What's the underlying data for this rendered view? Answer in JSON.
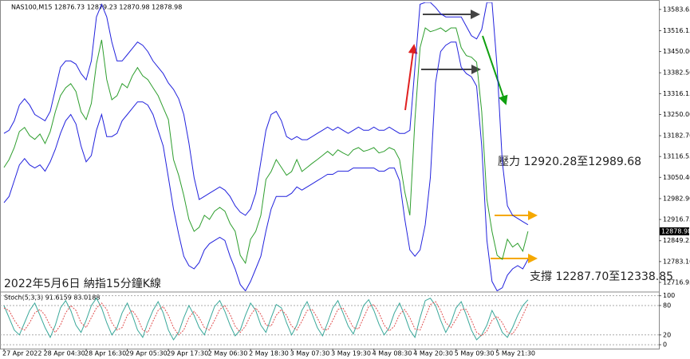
{
  "chart_data": [
    {
      "type": "line",
      "title": "NAS100,M15 12876.73 12879.23 12870.98 12878.98",
      "annotations": [
        "壓力 12920.28至12989.68",
        "支撐 12287.70至12338.85",
        "2022年5月6日 納指15分鐘K線"
      ],
      "categories": [
        "27 Apr 2022",
        null,
        null,
        null,
        null,
        null,
        null,
        null,
        "28 Apr 04:30",
        null,
        null,
        null,
        null,
        null,
        null,
        null,
        "28 Apr 16:30",
        null,
        null,
        null,
        null,
        null,
        null,
        null,
        "29 Apr 05:30",
        null,
        null,
        null,
        null,
        null,
        null,
        null,
        "29 Apr 17:30",
        null,
        null,
        null,
        null,
        null,
        null,
        null,
        "2 May 06:30",
        null,
        null,
        null,
        null,
        null,
        null,
        null,
        "2 May 18:30",
        null,
        null,
        null,
        null,
        null,
        null,
        null,
        "3 May 07:30",
        null,
        null,
        null,
        null,
        null,
        null,
        null,
        "3 May 19:30",
        null,
        null,
        null,
        null,
        null,
        null,
        null,
        "4 May 08:30",
        null,
        null,
        null,
        null,
        null,
        null,
        null,
        "4 May 20:30",
        null,
        null,
        null,
        null,
        null,
        null,
        null,
        "5 May 09:30",
        null,
        null,
        null,
        null,
        null,
        null,
        null,
        "5 May 21:30",
        null,
        null,
        null,
        null,
        null,
        null
      ],
      "series": [
        {
          "color": "#2e9e2e",
          "values": [
            13082,
            13107,
            13145,
            13196,
            13209,
            13183,
            13171,
            13188,
            13158,
            13196,
            13259,
            13310,
            13335,
            13348,
            13323,
            13259,
            13234,
            13285,
            13411,
            13487,
            13361,
            13297,
            13310,
            13348,
            13335,
            13373,
            13399,
            13373,
            13361,
            13335,
            13310,
            13272,
            13234,
            13107,
            13057,
            12993,
            12917,
            12879,
            12892,
            12930,
            12917,
            12943,
            12955,
            12943,
            12904,
            12879,
            12803,
            12778,
            12854,
            12879,
            12930,
            13044,
            13069,
            13107,
            13082,
            13057,
            13069,
            13107,
            13069,
            13082,
            13095,
            13107,
            13120,
            13133,
            13120,
            13138,
            13128,
            13120,
            13138,
            13145,
            13133,
            13138,
            13145,
            13128,
            13133,
            13145,
            13138,
            13107,
            13006,
            12930,
            13234,
            13462,
            13525,
            13513,
            13518,
            13525,
            13513,
            13525,
            13525,
            13462,
            13437,
            13432,
            13416,
            13259,
            12980,
            12879,
            12803,
            12790,
            12854,
            12829,
            12841,
            12816,
            12878.98
          ]
        },
        {
          "color": "#2222dd",
          "values": [
            13190,
            13200,
            13230,
            13280,
            13300,
            13280,
            13250,
            13240,
            13230,
            13260,
            13330,
            13400,
            13420,
            13420,
            13410,
            13380,
            13360,
            13420,
            13560,
            13600,
            13560,
            13480,
            13420,
            13420,
            13440,
            13460,
            13480,
            13470,
            13450,
            13420,
            13400,
            13380,
            13350,
            13330,
            13300,
            13250,
            13160,
            13050,
            12980,
            12990,
            13000,
            13010,
            13020,
            13010,
            12990,
            12960,
            12940,
            12930,
            12950,
            13000,
            13100,
            13200,
            13250,
            13260,
            13230,
            13180,
            13170,
            13180,
            13170,
            13170,
            13180,
            13190,
            13200,
            13210,
            13200,
            13210,
            13200,
            13190,
            13200,
            13210,
            13200,
            13200,
            13210,
            13200,
            13200,
            13210,
            13200,
            13190,
            13190,
            13200,
            13400,
            13600,
            13606,
            13606,
            13590,
            13570,
            13560,
            13560,
            13560,
            13560,
            13530,
            13500,
            13490,
            13520,
            13606,
            13606,
            13400,
            13100,
            12960,
            12930,
            12920,
            12910,
            12900
          ]
        },
        {
          "color": "#2222dd",
          "values": [
            12970,
            12990,
            13040,
            13090,
            13110,
            13090,
            13080,
            13090,
            13070,
            13100,
            13140,
            13190,
            13230,
            13250,
            13220,
            13150,
            13100,
            13120,
            13200,
            13250,
            13180,
            13180,
            13190,
            13230,
            13250,
            13270,
            13290,
            13290,
            13280,
            13250,
            13200,
            13150,
            13050,
            12950,
            12870,
            12800,
            12770,
            12760,
            12780,
            12820,
            12840,
            12850,
            12860,
            12850,
            12800,
            12760,
            12710,
            12690,
            12720,
            12760,
            12800,
            12880,
            12950,
            12990,
            12990,
            12990,
            13000,
            13020,
            13010,
            13020,
            13030,
            13040,
            13050,
            13060,
            13060,
            13070,
            13070,
            13070,
            13080,
            13080,
            13080,
            13080,
            13080,
            13070,
            13070,
            13080,
            13080,
            13040,
            12920,
            12820,
            12800,
            12820,
            12900,
            13050,
            13350,
            13450,
            13470,
            13480,
            13480,
            13400,
            13380,
            13370,
            13340,
            13150,
            12850,
            12720,
            12690,
            12700,
            12740,
            12760,
            12770,
            12760,
            12790
          ]
        }
      ],
      "ylim": [
        12689,
        13606
      ],
      "yticks": [
        13583.65,
        13516.15,
        {
          "value": 13450,
          "label": "13450.00"
        },
        {
          "value": 13382.5,
          "label": "13382.50"
        },
        13316.15,
        {
          "value": 13250,
          "label": "13250.00"
        },
        {
          "value": 13182.7,
          "label": "13182.70"
        },
        13116.55,
        {
          "value": 13050.4,
          "label": "13050.40"
        },
        {
          "value": 12982.9,
          "label": "12982.90"
        },
        12916.75,
        12849.25,
        {
          "value": 12783.1,
          "label": "12783.10"
        },
        12716.95
      ]
    },
    {
      "type": "line",
      "title": "Stoch(5,3,3) 91.6159 83.0188",
      "series": [
        {
          "color": "#3aa89a",
          "values": [
            80,
            55,
            30,
            20,
            45,
            70,
            85,
            60,
            35,
            15,
            40,
            75,
            90,
            70,
            40,
            25,
            50,
            80,
            95,
            75,
            45,
            20,
            35,
            65,
            85,
            60,
            30,
            15,
            45,
            70,
            88,
            65,
            30,
            10,
            25,
            55,
            80,
            60,
            35,
            20,
            50,
            78,
            90,
            68,
            40,
            18,
            30,
            60,
            85,
            70,
            40,
            25,
            55,
            82,
            75,
            45,
            20,
            40,
            70,
            88,
            62,
            35,
            18,
            45,
            75,
            90,
            65,
            38,
            22,
            50,
            80,
            92,
            70,
            42,
            20,
            35,
            65,
            85,
            60,
            30,
            15,
            55,
            90,
            95,
            80,
            50,
            25,
            45,
            75,
            88,
            60,
            30,
            10,
            20,
            40,
            70,
            50,
            25,
            15,
            35,
            60,
            80,
            91.6159
          ]
        },
        {
          "color": "#e05050",
          "dashed": true,
          "values": [
            75,
            70,
            50,
            35,
            30,
            45,
            65,
            72,
            60,
            38,
            25,
            40,
            65,
            80,
            70,
            45,
            35,
            55,
            75,
            85,
            72,
            45,
            30,
            35,
            60,
            70,
            55,
            30,
            25,
            48,
            70,
            78,
            60,
            35,
            20,
            30,
            55,
            68,
            55,
            35,
            30,
            50,
            72,
            80,
            62,
            38,
            25,
            38,
            60,
            75,
            62,
            40,
            38,
            60,
            72,
            60,
            38,
            30,
            48,
            70,
            72,
            55,
            32,
            30,
            50,
            72,
            75,
            55,
            35,
            32,
            55,
            78,
            82,
            65,
            40,
            28,
            38,
            62,
            72,
            55,
            32,
            30,
            55,
            82,
            88,
            70,
            45,
            35,
            52,
            72,
            72,
            50,
            25,
            18,
            28,
            50,
            58,
            45,
            25,
            22,
            38,
            60,
            83.0188
          ]
        }
      ],
      "ylim": [
        -8,
        106
      ],
      "yticks": [
        100,
        80,
        20,
        0
      ]
    }
  ]
}
